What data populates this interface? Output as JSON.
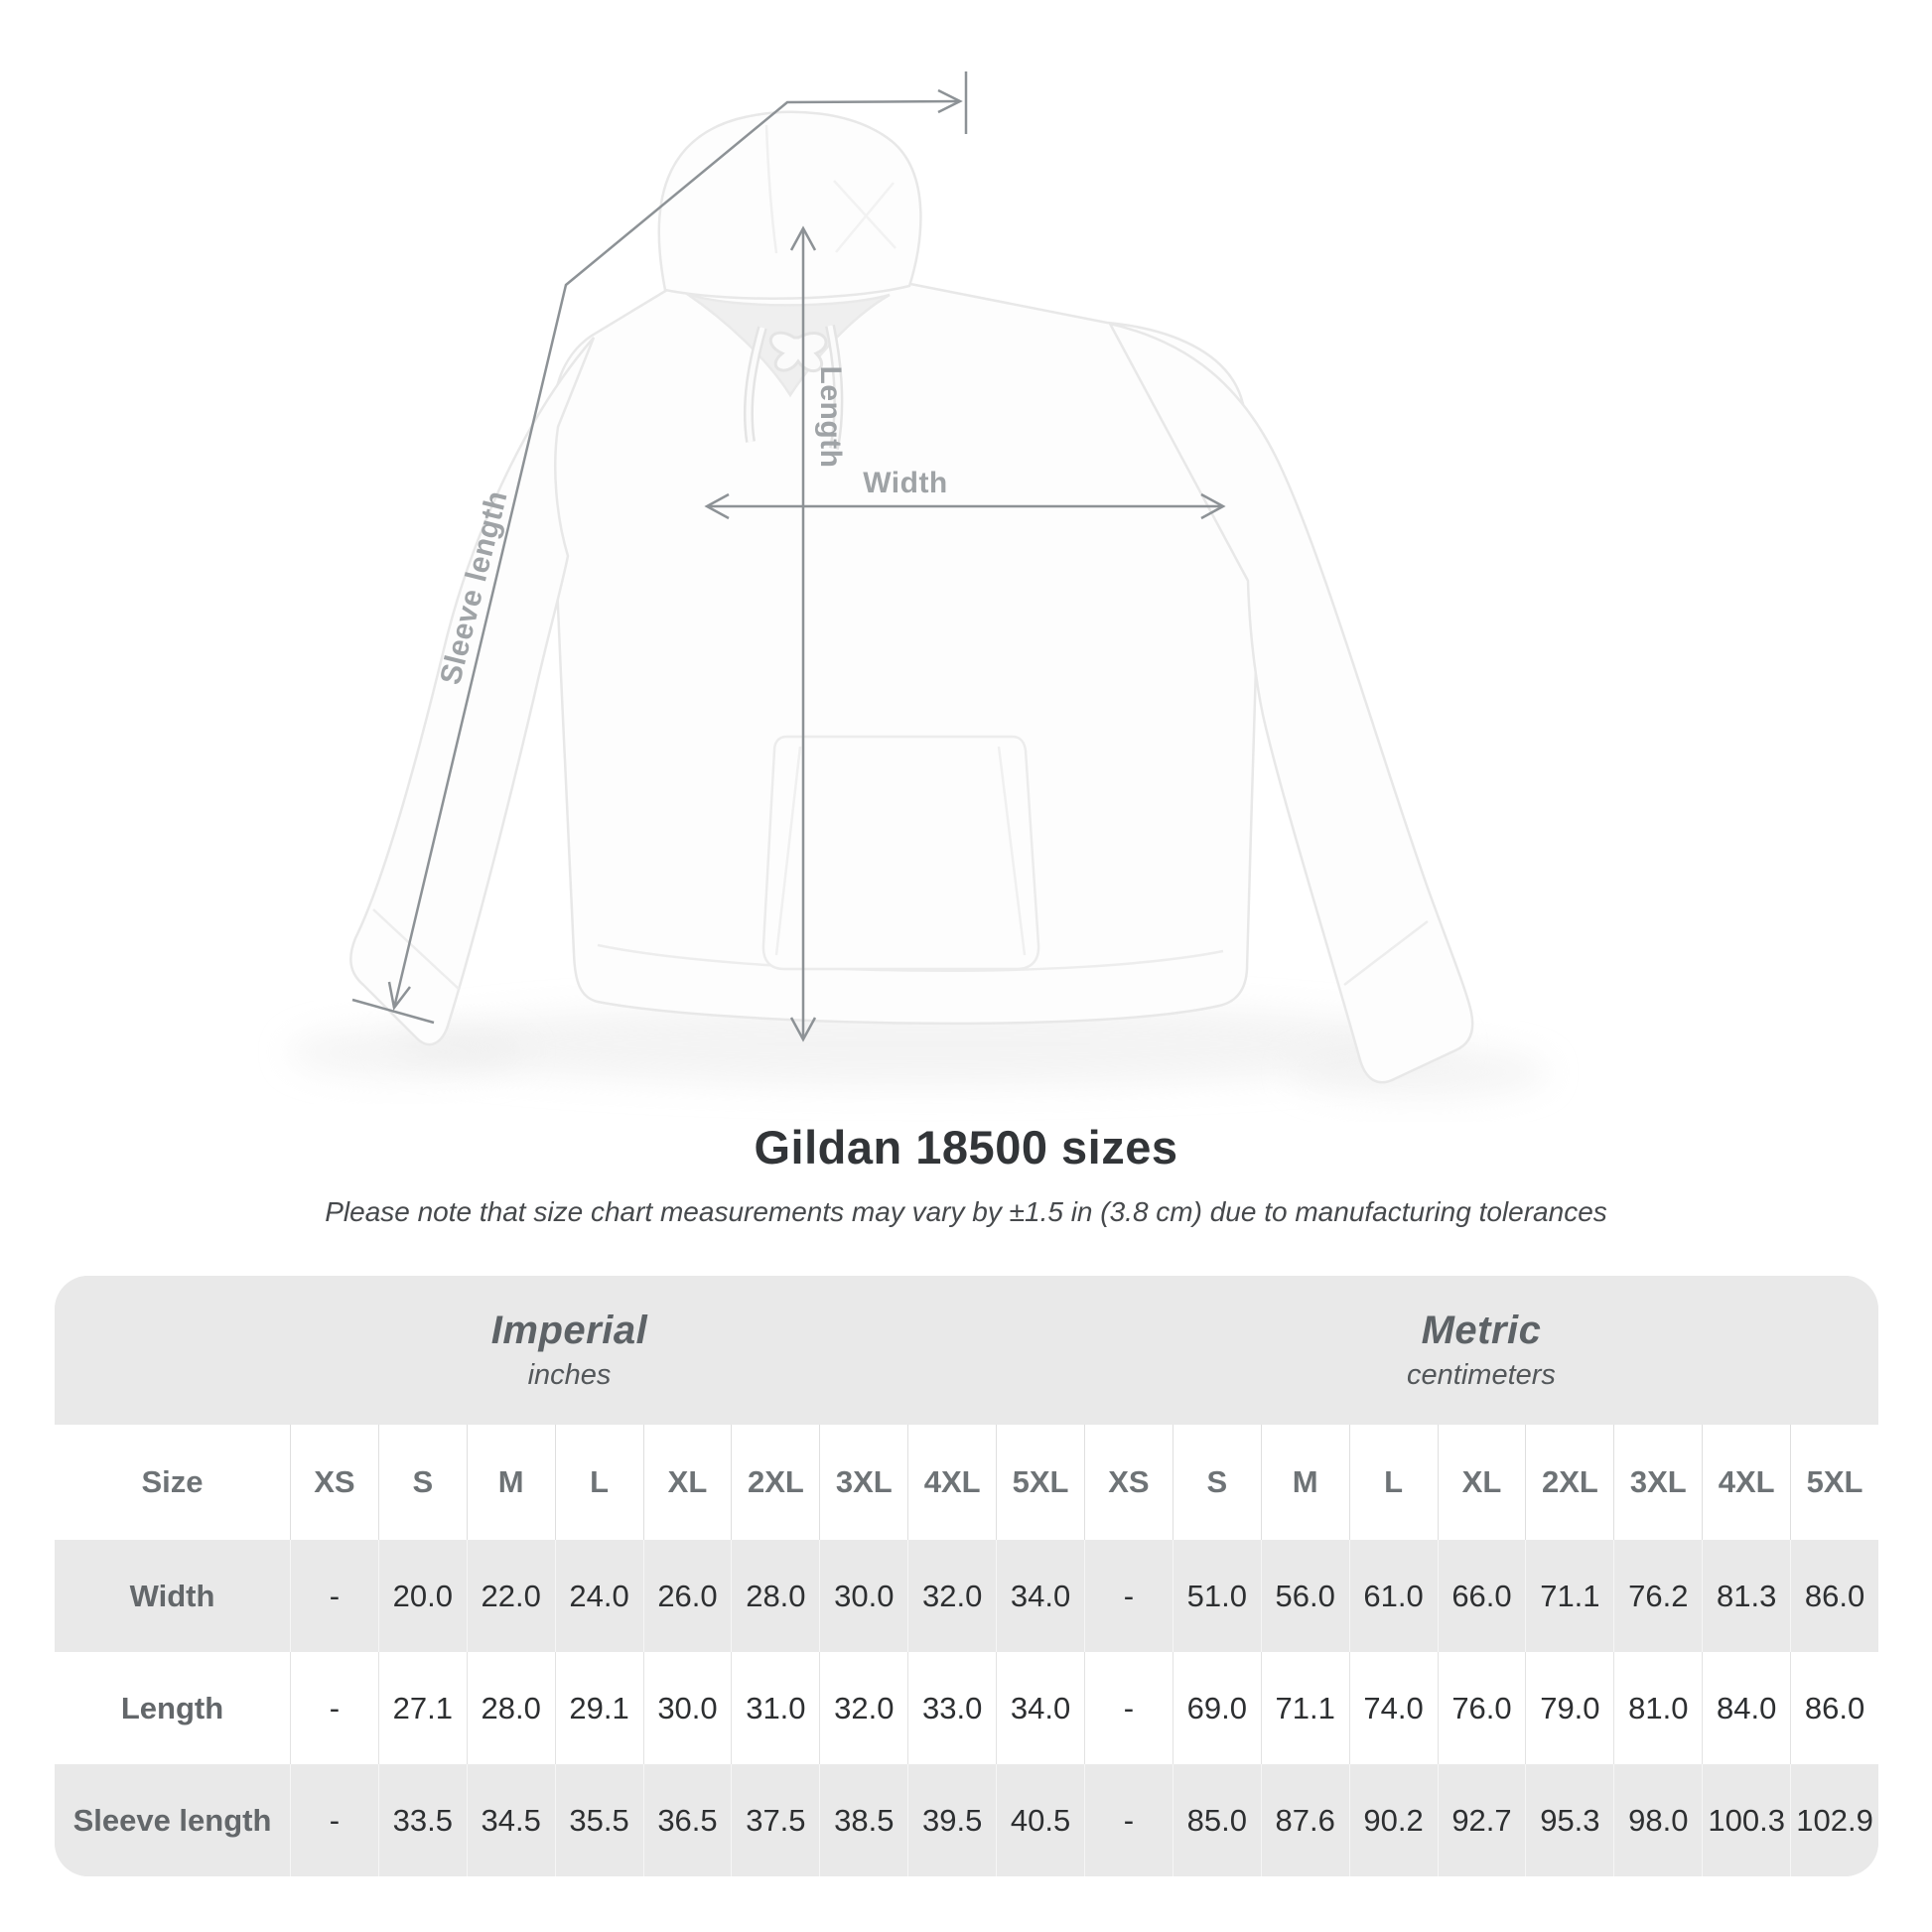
{
  "diagram": {
    "labels": {
      "length": "Length",
      "width": "Width",
      "sleeve_length": "Sleeve length"
    }
  },
  "title": "Gildan 18500 sizes",
  "subtitle": "Please note that size chart measurements may vary by ±1.5 in (3.8 cm) due to manufacturing tolerances",
  "colors": {
    "table_band_gray": "#e9e9e9",
    "arrow_gray": "#8d9296",
    "diagram_label_gray": "#9fa3a6",
    "title_text": "#323538",
    "header_text": "#6e7376",
    "value_text": "#2d2f31"
  },
  "chart_data": {
    "type": "table",
    "title": "Gildan 18500 sizes",
    "note": "Please note that size chart measurements may vary by ±1.5 in (3.8 cm) due to manufacturing tolerances",
    "column_groups": [
      {
        "label": "Imperial",
        "sublabel": "inches"
      },
      {
        "label": "Metric",
        "sublabel": "centimeters"
      }
    ],
    "size_column_header": "Size",
    "sizes": [
      "XS",
      "S",
      "M",
      "L",
      "XL",
      "2XL",
      "3XL",
      "4XL",
      "5XL"
    ],
    "rows": [
      {
        "label": "Width",
        "imperial": [
          "-",
          "20.0",
          "22.0",
          "24.0",
          "26.0",
          "28.0",
          "30.0",
          "32.0",
          "34.0"
        ],
        "metric": [
          "-",
          "51.0",
          "56.0",
          "61.0",
          "66.0",
          "71.1",
          "76.2",
          "81.3",
          "86.0"
        ]
      },
      {
        "label": "Length",
        "imperial": [
          "-",
          "27.1",
          "28.0",
          "29.1",
          "30.0",
          "31.0",
          "32.0",
          "33.0",
          "34.0"
        ],
        "metric": [
          "-",
          "69.0",
          "71.1",
          "74.0",
          "76.0",
          "79.0",
          "81.0",
          "84.0",
          "86.0"
        ]
      },
      {
        "label": "Sleeve length",
        "imperial": [
          "-",
          "33.5",
          "34.5",
          "35.5",
          "36.5",
          "37.5",
          "38.5",
          "39.5",
          "40.5"
        ],
        "metric": [
          "-",
          "85.0",
          "87.6",
          "90.2",
          "92.7",
          "95.3",
          "98.0",
          "100.3",
          "102.9"
        ]
      }
    ]
  }
}
